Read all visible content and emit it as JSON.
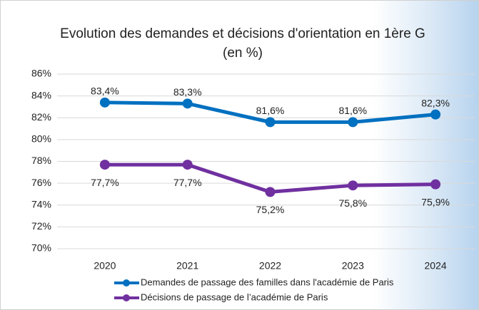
{
  "chart_data": {
    "type": "line",
    "title": "Evolution des demandes et décisions d'orientation en 1ère G (en %)",
    "categories": [
      "2020",
      "2021",
      "2022",
      "2023",
      "2024"
    ],
    "series": [
      {
        "name": "Demandes de passage des familles dans l'académie de Paris",
        "color": "#0070c0",
        "values": [
          83.4,
          83.3,
          81.6,
          81.6,
          82.3
        ],
        "value_labels": [
          "83,4%",
          "83,3%",
          "81,6%",
          "81,6%",
          "82,3%"
        ]
      },
      {
        "name": "Décisions de passage de l’académie de Paris",
        "color": "#7030a0",
        "values": [
          77.7,
          77.7,
          75.2,
          75.8,
          75.9
        ],
        "value_labels": [
          "77,7%",
          "77,7%",
          "75,2%",
          "75,8%",
          "75,9%"
        ]
      }
    ],
    "ylim": [
      70,
      86
    ],
    "yticks": [
      {
        "value": 70,
        "label": "70%"
      },
      {
        "value": 72,
        "label": "72%"
      },
      {
        "value": 74,
        "label": "74%"
      },
      {
        "value": 76,
        "label": "76%"
      },
      {
        "value": 78,
        "label": "78%"
      },
      {
        "value": 80,
        "label": "80%"
      },
      {
        "value": 82,
        "label": "82%"
      },
      {
        "value": 84,
        "label": "84%"
      },
      {
        "value": 86,
        "label": "86%"
      }
    ],
    "grid": true
  }
}
